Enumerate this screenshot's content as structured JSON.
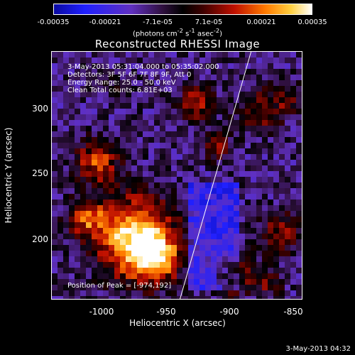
{
  "colorbar": {
    "ticks": [
      "-0.00035",
      "-0.00021",
      "-7.1e-05",
      "7.1e-05",
      "0.00021",
      "0.00035"
    ],
    "units_prefix": "(photons cm",
    "units_sup1": "-2",
    "units_mid": " s",
    "units_sup2": "-1",
    "units_mid2": " asec",
    "units_sup3": "-2",
    "units_suffix": ")"
  },
  "title": "Reconstructed RHESSI Image",
  "info": {
    "time_range": "3-May-2013 05:31:04.000 to 05:35:02.000",
    "detectors": "Detectors: 3F 5F 6F 7F 8F 9F, Att 0",
    "energy": "Energy Range: 25.0 - 50.0 keV",
    "method": "Clean    Total counts: 6.81E+03",
    "peak": "Position of Peak = [-974,192]"
  },
  "axes": {
    "xlabel": "Heliocentric X (arcsec)",
    "ylabel": "Heliocentric Y (arcsec)",
    "xticks": [
      "-1000",
      "-950",
      "-900",
      "-850"
    ],
    "yticks": [
      "300",
      "250",
      "200"
    ]
  },
  "timestamp": "3-May-2013 04:32"
}
